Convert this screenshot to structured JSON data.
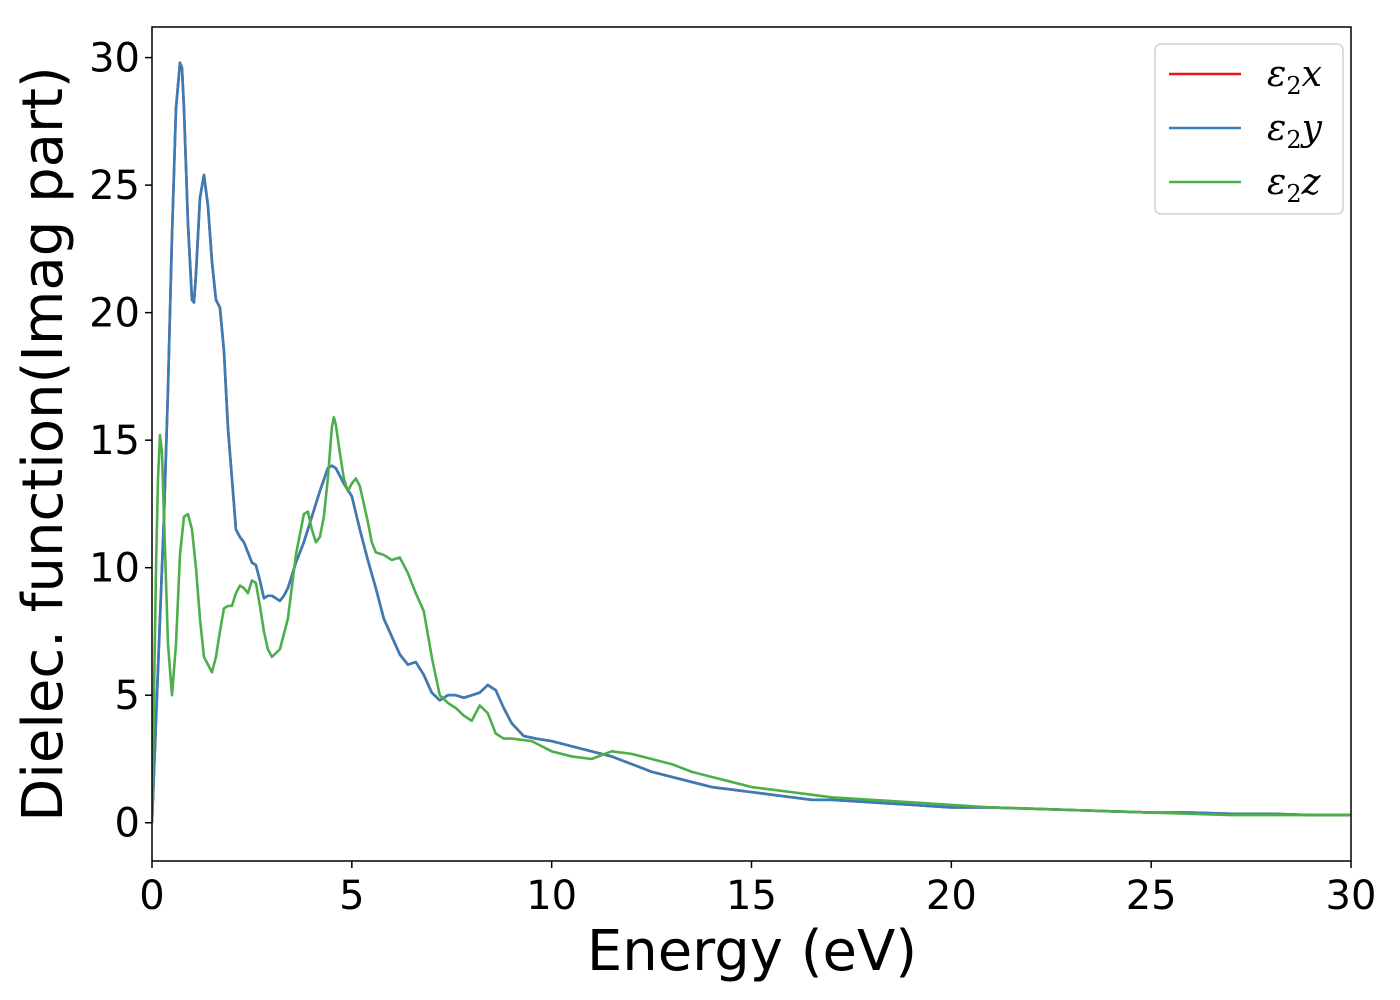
{
  "chart_data": {
    "type": "line",
    "xlabel": "Energy (eV)",
    "ylabel": "Dielec. function(Imag part)",
    "xlim": [
      0,
      30
    ],
    "ylim": [
      -1.5,
      31.2
    ],
    "xticks": [
      0,
      5,
      10,
      15,
      20,
      25,
      30
    ],
    "yticks": [
      0,
      5,
      10,
      15,
      20,
      25,
      30
    ],
    "grid": false,
    "legend_position": "top-right",
    "series": [
      {
        "name": "ε2x",
        "color": "#e41a1c",
        "x": [
          0,
          0.1,
          0.2,
          0.3,
          0.4,
          0.5,
          0.6,
          0.7,
          0.75,
          0.8,
          0.9,
          1.0,
          1.05,
          1.1,
          1.2,
          1.3,
          1.4,
          1.5,
          1.6,
          1.7,
          1.8,
          1.9,
          2.0,
          2.1,
          2.2,
          2.3,
          2.4,
          2.5,
          2.6,
          2.7,
          2.8,
          2.9,
          3.0,
          3.1,
          3.2,
          3.3,
          3.4,
          3.5,
          3.6,
          3.8,
          4.0,
          4.2,
          4.4,
          4.5,
          4.6,
          4.7,
          4.8,
          5.0,
          5.2,
          5.4,
          5.6,
          5.8,
          6.0,
          6.2,
          6.4,
          6.6,
          6.8,
          7.0,
          7.2,
          7.4,
          7.6,
          7.8,
          8.0,
          8.2,
          8.4,
          8.6,
          8.8,
          9.0,
          9.3,
          9.6,
          10.0,
          10.5,
          11.0,
          11.5,
          12.0,
          12.5,
          13.0,
          13.5,
          14.0,
          14.5,
          15.0,
          15.5,
          16.0,
          16.5,
          17.0,
          17.5,
          18.0,
          18.5,
          19.0,
          19.5,
          20.0,
          21.0,
          22.0,
          23.0,
          24.0,
          25.0,
          26.0,
          27.0,
          28.0,
          29.0,
          30.0
        ],
        "y": [
          0,
          4.0,
          8.0,
          12.0,
          17.0,
          23.0,
          28.0,
          29.8,
          29.6,
          28.0,
          23.5,
          20.5,
          20.4,
          21.5,
          24.5,
          25.4,
          24.2,
          22.0,
          20.5,
          20.2,
          18.5,
          15.5,
          13.5,
          11.5,
          11.2,
          11.0,
          10.6,
          10.2,
          10.1,
          9.5,
          8.8,
          8.9,
          8.9,
          8.8,
          8.7,
          8.9,
          9.2,
          9.7,
          10.2,
          11.0,
          12.0,
          13.0,
          13.9,
          14.0,
          13.9,
          13.6,
          13.3,
          12.8,
          11.5,
          10.3,
          9.2,
          8.0,
          7.3,
          6.6,
          6.2,
          6.3,
          5.8,
          5.1,
          4.8,
          5.0,
          5.0,
          4.9,
          5.0,
          5.1,
          5.4,
          5.2,
          4.5,
          3.9,
          3.4,
          3.3,
          3.2,
          3.0,
          2.8,
          2.6,
          2.3,
          2.0,
          1.8,
          1.6,
          1.4,
          1.3,
          1.2,
          1.1,
          1.0,
          0.9,
          0.9,
          0.85,
          0.8,
          0.75,
          0.7,
          0.65,
          0.6,
          0.6,
          0.55,
          0.5,
          0.45,
          0.4,
          0.4,
          0.35,
          0.35,
          0.3,
          0.3
        ]
      },
      {
        "name": "ε2y",
        "color": "#377eb8",
        "x": [
          0,
          0.1,
          0.2,
          0.3,
          0.4,
          0.5,
          0.6,
          0.7,
          0.75,
          0.8,
          0.9,
          1.0,
          1.05,
          1.1,
          1.2,
          1.3,
          1.4,
          1.5,
          1.6,
          1.7,
          1.8,
          1.9,
          2.0,
          2.1,
          2.2,
          2.3,
          2.4,
          2.5,
          2.6,
          2.7,
          2.8,
          2.9,
          3.0,
          3.1,
          3.2,
          3.3,
          3.4,
          3.5,
          3.6,
          3.8,
          4.0,
          4.2,
          4.4,
          4.5,
          4.6,
          4.7,
          4.8,
          5.0,
          5.2,
          5.4,
          5.6,
          5.8,
          6.0,
          6.2,
          6.4,
          6.6,
          6.8,
          7.0,
          7.2,
          7.4,
          7.6,
          7.8,
          8.0,
          8.2,
          8.4,
          8.6,
          8.8,
          9.0,
          9.3,
          9.6,
          10.0,
          10.5,
          11.0,
          11.5,
          12.0,
          12.5,
          13.0,
          13.5,
          14.0,
          14.5,
          15.0,
          15.5,
          16.0,
          16.5,
          17.0,
          17.5,
          18.0,
          18.5,
          19.0,
          19.5,
          20.0,
          21.0,
          22.0,
          23.0,
          24.0,
          25.0,
          26.0,
          27.0,
          28.0,
          29.0,
          30.0
        ],
        "y": [
          0,
          4.0,
          8.0,
          12.0,
          17.0,
          23.0,
          28.0,
          29.8,
          29.6,
          28.0,
          23.5,
          20.5,
          20.4,
          21.5,
          24.5,
          25.4,
          24.2,
          22.0,
          20.5,
          20.2,
          18.5,
          15.5,
          13.5,
          11.5,
          11.2,
          11.0,
          10.6,
          10.2,
          10.1,
          9.5,
          8.8,
          8.9,
          8.9,
          8.8,
          8.7,
          8.9,
          9.2,
          9.7,
          10.2,
          11.0,
          12.0,
          13.0,
          13.9,
          14.0,
          13.9,
          13.6,
          13.3,
          12.8,
          11.5,
          10.3,
          9.2,
          8.0,
          7.3,
          6.6,
          6.2,
          6.3,
          5.8,
          5.1,
          4.8,
          5.0,
          5.0,
          4.9,
          5.0,
          5.1,
          5.4,
          5.2,
          4.5,
          3.9,
          3.4,
          3.3,
          3.2,
          3.0,
          2.8,
          2.6,
          2.3,
          2.0,
          1.8,
          1.6,
          1.4,
          1.3,
          1.2,
          1.1,
          1.0,
          0.9,
          0.9,
          0.85,
          0.8,
          0.75,
          0.7,
          0.65,
          0.6,
          0.6,
          0.55,
          0.5,
          0.45,
          0.4,
          0.4,
          0.35,
          0.35,
          0.3,
          0.3
        ]
      },
      {
        "name": "ε2z",
        "color": "#4daf4a",
        "x": [
          0,
          0.1,
          0.15,
          0.2,
          0.25,
          0.3,
          0.4,
          0.5,
          0.6,
          0.7,
          0.8,
          0.9,
          1.0,
          1.1,
          1.2,
          1.3,
          1.4,
          1.5,
          1.6,
          1.7,
          1.8,
          1.9,
          2.0,
          2.1,
          2.2,
          2.3,
          2.4,
          2.5,
          2.6,
          2.7,
          2.8,
          2.9,
          3.0,
          3.2,
          3.4,
          3.6,
          3.8,
          3.9,
          4.0,
          4.1,
          4.2,
          4.3,
          4.4,
          4.5,
          4.55,
          4.6,
          4.7,
          4.8,
          4.9,
          5.0,
          5.1,
          5.2,
          5.3,
          5.4,
          5.5,
          5.6,
          5.8,
          6.0,
          6.2,
          6.4,
          6.6,
          6.8,
          7.0,
          7.2,
          7.4,
          7.6,
          7.8,
          8.0,
          8.2,
          8.4,
          8.6,
          8.8,
          9.0,
          9.5,
          10.0,
          10.5,
          11.0,
          11.5,
          12.0,
          12.5,
          13.0,
          13.5,
          14.0,
          14.5,
          15.0,
          15.5,
          16.0,
          16.5,
          17.0,
          17.5,
          18.0,
          19.0,
          20.0,
          21.0,
          22.0,
          23.0,
          24.0,
          25.0,
          26.0,
          27.0,
          28.0,
          29.0,
          30.0
        ],
        "y": [
          0,
          10.0,
          13.5,
          15.2,
          14.5,
          12.0,
          7.0,
          5.0,
          7.0,
          10.5,
          12.0,
          12.1,
          11.5,
          10.0,
          8.0,
          6.5,
          6.2,
          5.9,
          6.5,
          7.5,
          8.4,
          8.5,
          8.5,
          9.0,
          9.3,
          9.2,
          9.0,
          9.5,
          9.4,
          8.5,
          7.5,
          6.8,
          6.5,
          6.8,
          8.0,
          10.5,
          12.1,
          12.2,
          11.5,
          11.0,
          11.2,
          12.0,
          13.5,
          15.5,
          15.9,
          15.6,
          14.5,
          13.5,
          13.0,
          13.3,
          13.5,
          13.2,
          12.5,
          11.8,
          11.0,
          10.6,
          10.5,
          10.3,
          10.4,
          9.8,
          9.0,
          8.3,
          6.5,
          5.0,
          4.7,
          4.5,
          4.2,
          4.0,
          4.6,
          4.3,
          3.5,
          3.3,
          3.3,
          3.2,
          2.8,
          2.6,
          2.5,
          2.8,
          2.7,
          2.5,
          2.3,
          2.0,
          1.8,
          1.6,
          1.4,
          1.3,
          1.2,
          1.1,
          1.0,
          0.95,
          0.9,
          0.8,
          0.7,
          0.6,
          0.55,
          0.5,
          0.45,
          0.4,
          0.35,
          0.3,
          0.3,
          0.3,
          0.3
        ]
      }
    ]
  }
}
